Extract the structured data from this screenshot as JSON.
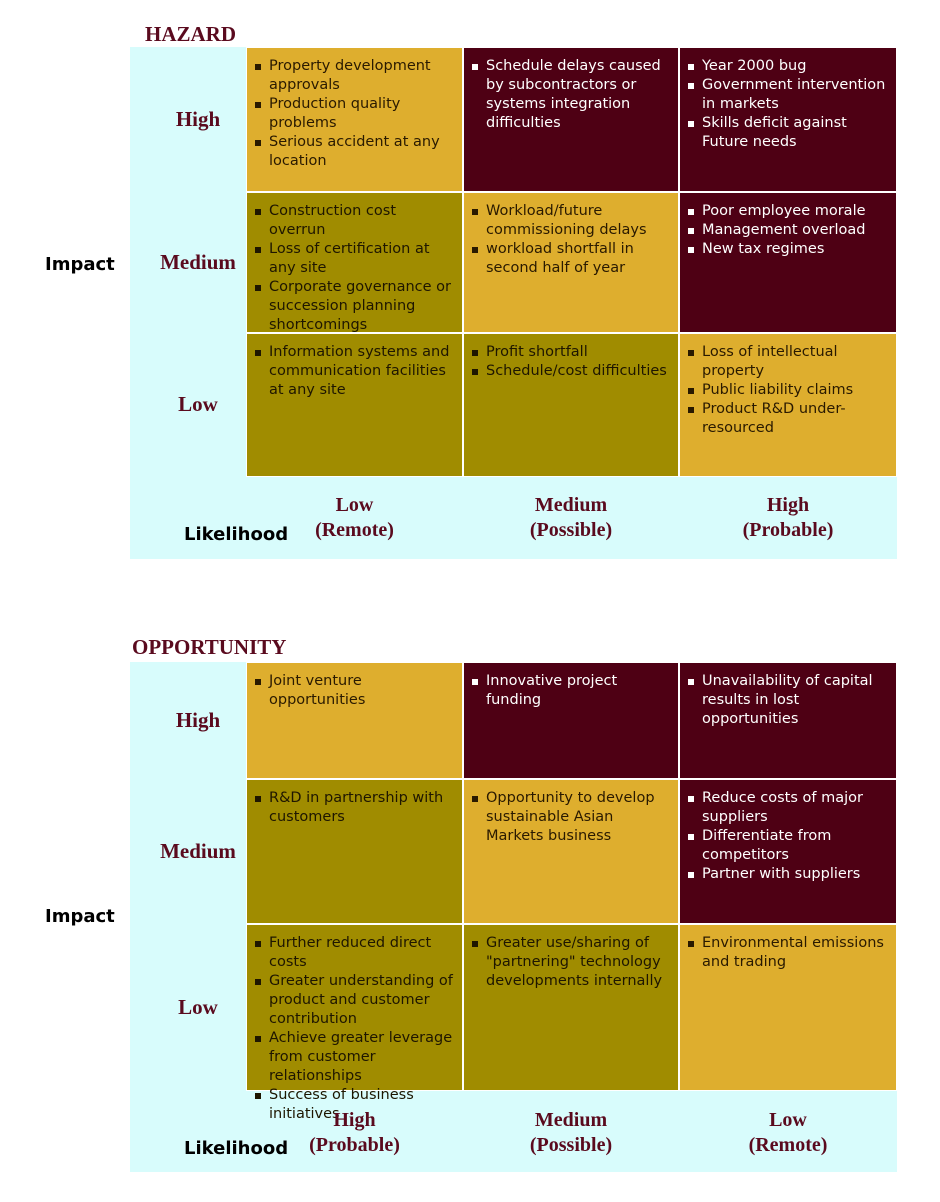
{
  "hazard": {
    "title": "HAZARD",
    "impact_label": "Impact",
    "likelihood_label": "Likelihood",
    "rows": [
      "High",
      "Medium",
      "Low"
    ],
    "columns": [
      {
        "level": "Low",
        "note": "(Remote)"
      },
      {
        "level": "Medium",
        "note": "(Possible)"
      },
      {
        "level": "High",
        "note": "(Probable)"
      }
    ],
    "cells": [
      [
        [
          "Property development approvals",
          "Production quality problems",
          "Serious accident at any location"
        ],
        [
          "Schedule delays caused by subcontractors or systems integration difficulties"
        ],
        [
          "Year 2000 bug",
          "Government intervention in markets",
          "Skills deficit against Future needs"
        ]
      ],
      [
        [
          "Construction cost overrun",
          "Loss of certification at any site",
          "Corporate governance or succession planning shortcomings"
        ],
        [
          "Workload/future commissioning delays",
          "workload shortfall in second half of year"
        ],
        [
          "Poor employee morale",
          "Management overload",
          "New tax regimes"
        ]
      ],
      [
        [
          "Information systems and communication facilities at any site"
        ],
        [
          "Profit shortfall",
          "Schedule/cost difficulties"
        ],
        [
          "Loss of intellectual property",
          "Public liability claims",
          "Product R&D under-resourced"
        ]
      ]
    ]
  },
  "opportunity": {
    "title": "OPPORTUNITY",
    "impact_label": "Impact",
    "likelihood_label": "Likelihood",
    "rows": [
      "High",
      "Medium",
      "Low"
    ],
    "columns": [
      {
        "level": "High",
        "note": "(Probable)"
      },
      {
        "level": "Medium",
        "note": "(Possible)"
      },
      {
        "level": "Low",
        "note": "(Remote)"
      }
    ],
    "cells": [
      [
        [
          "Joint venture opportunities"
        ],
        [
          "Innovative project funding"
        ],
        [
          "Unavailability of capital results in lost opportunities"
        ]
      ],
      [
        [
          "R&D in partnership with customers"
        ],
        [
          "Opportunity to develop sustainable Asian Markets business"
        ],
        [
          "Reduce costs of major suppliers",
          "Differentiate from competitors",
          "Partner with suppliers"
        ]
      ],
      [
        [
          "Further reduced direct costs",
          "Greater understanding of product and customer contribution",
          "Achieve greater leverage from customer relationships",
          "Success of business initiatives"
        ],
        [
          "Greater use/sharing of \"partnering\" technology developments internally"
        ],
        [
          "Environmental emissions and trading"
        ]
      ]
    ]
  }
}
